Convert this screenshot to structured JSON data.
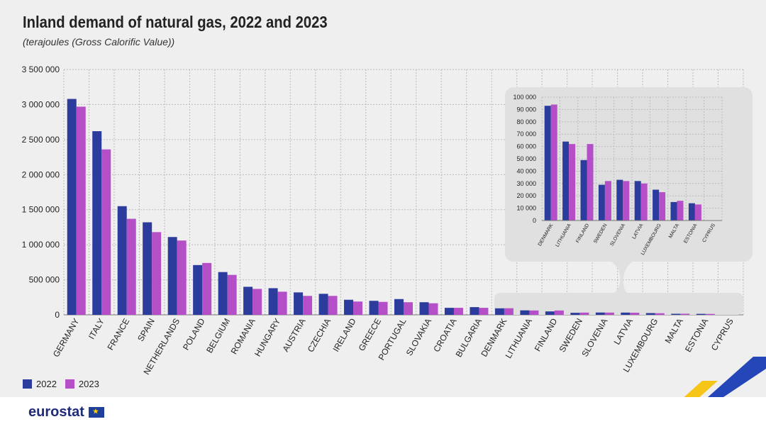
{
  "title": "Inland demand of natural gas, 2022 and 2023",
  "subtitle": "(terajoules (Gross Calorific Value))",
  "brand": "eurostat",
  "colors": {
    "s2022": "#2c3c9c",
    "s2023": "#b54fc7",
    "grid": "#bbbbbb",
    "inset_bg": "#e0e0e0"
  },
  "chart_data": [
    {
      "type": "bar",
      "title": "Inland demand of natural gas, 2022 and 2023",
      "ylabel": "terajoules (Gross Calorific Value)",
      "ylim": [
        0,
        3500000
      ],
      "yticks": [
        0,
        500000,
        1000000,
        1500000,
        2000000,
        2500000,
        3000000,
        3500000
      ],
      "ytick_labels": [
        "0",
        "500 000",
        "1 000 000",
        "1 500 000",
        "2 000 000",
        "2 500 000",
        "3 000 000",
        "3 500 000"
      ],
      "categories": [
        "GERMANY",
        "ITALY",
        "FRANCE",
        "SPAIN",
        "NETHERLANDS",
        "POLAND",
        "BELGIUM",
        "ROMANIA",
        "HUNGARY",
        "AUSTRIA",
        "CZECHIA",
        "IRELAND",
        "GREECE",
        "PORTUGAL",
        "SLOVAKIA",
        "CROATIA",
        "BULGARIA",
        "DENMARK",
        "LITHUANIA",
        "FINLAND",
        "SWEDEN",
        "SLOVENIA",
        "LATVIA",
        "LUXEMBOURG",
        "MALTA",
        "ESTONIA",
        "CYPRUS"
      ],
      "series": [
        {
          "name": "2022",
          "values": [
            3080000,
            2620000,
            1550000,
            1320000,
            1110000,
            710000,
            610000,
            400000,
            380000,
            320000,
            300000,
            215000,
            200000,
            225000,
            180000,
            100000,
            110000,
            93000,
            64000,
            49000,
            29000,
            33000,
            32000,
            25000,
            15000,
            14000,
            0
          ]
        },
        {
          "name": "2023",
          "values": [
            2970000,
            2360000,
            1370000,
            1180000,
            1060000,
            740000,
            570000,
            370000,
            330000,
            270000,
            270000,
            190000,
            185000,
            180000,
            165000,
            100000,
            100000,
            94000,
            62000,
            62000,
            32000,
            32000,
            30000,
            23000,
            16000,
            13000,
            0
          ]
        }
      ],
      "legend": "bottom-left"
    },
    {
      "type": "bar",
      "title": "",
      "ylim": [
        0,
        100000
      ],
      "yticks": [
        0,
        10000,
        20000,
        30000,
        40000,
        50000,
        60000,
        70000,
        80000,
        90000,
        100000
      ],
      "ytick_labels": [
        "0",
        "10 000",
        "20 000",
        "30 000",
        "40 000",
        "50 000",
        "60 000",
        "70 000",
        "80 000",
        "90 000",
        "100 000"
      ],
      "categories": [
        "DENMARK",
        "LITHUANIA",
        "FINLAND",
        "SWEDEN",
        "SLOVENIA",
        "LATVIA",
        "LUXEMBOURG",
        "MALTA",
        "ESTONIA",
        "CYPRUS"
      ],
      "series": [
        {
          "name": "2022",
          "values": [
            93000,
            64000,
            49000,
            29000,
            33000,
            32000,
            25000,
            15000,
            14000,
            0
          ]
        },
        {
          "name": "2023",
          "values": [
            94000,
            62000,
            62000,
            32000,
            32000,
            30000,
            23000,
            16000,
            13000,
            0
          ]
        }
      ]
    }
  ]
}
